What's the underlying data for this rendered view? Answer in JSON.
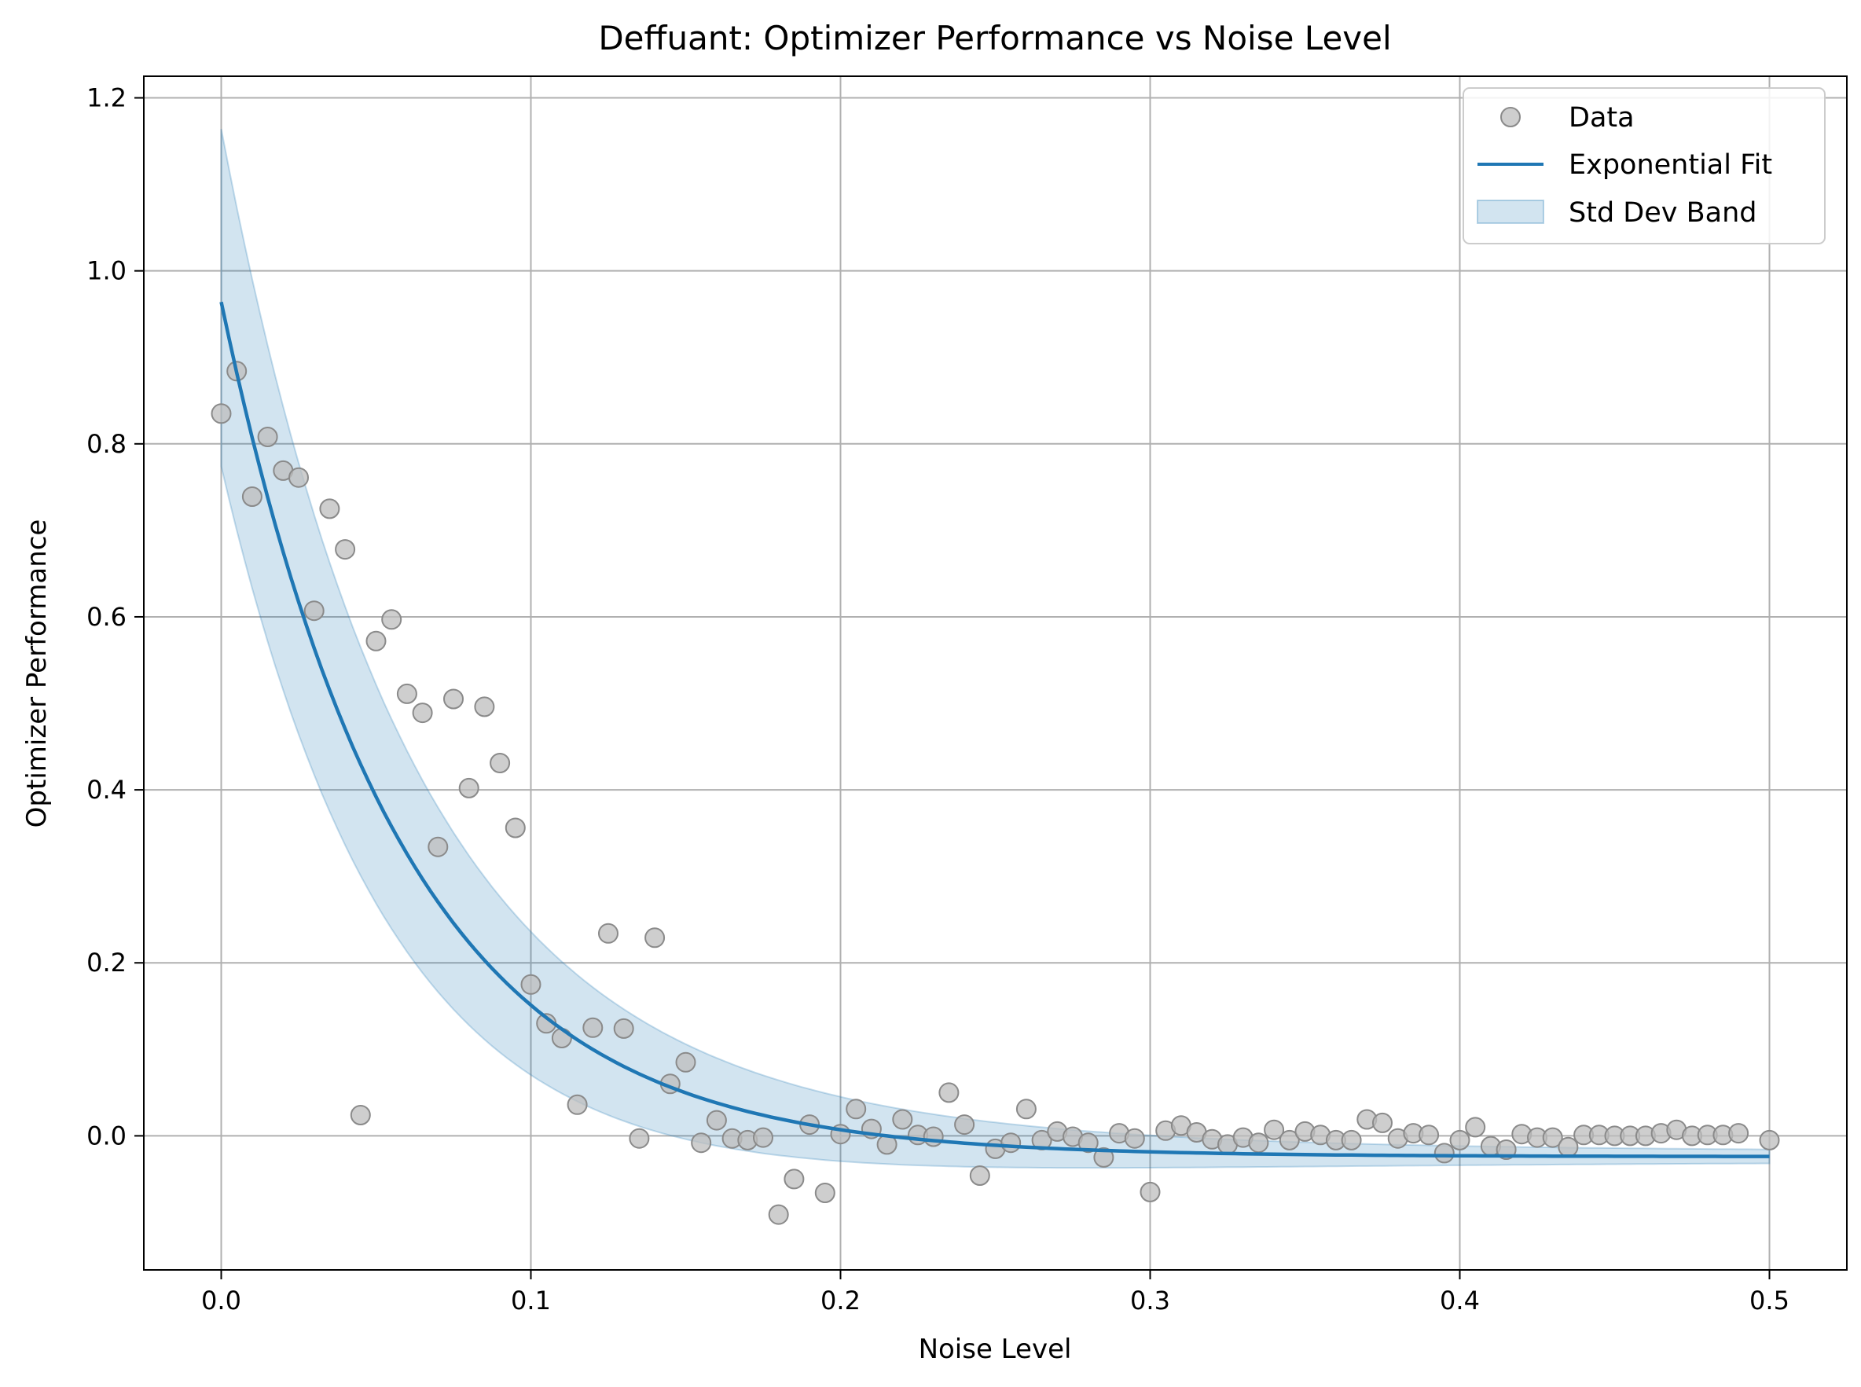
{
  "chart_data": {
    "type": "scatter",
    "title": "Deffuant: Optimizer Performance vs Noise Level",
    "xlabel": "Noise Level",
    "ylabel": "Optimizer Performance",
    "xlim": [
      -0.025,
      0.525
    ],
    "ylim": [
      -0.155,
      1.225
    ],
    "grid": true,
    "legend_placement": "top-right",
    "x_ticks": [
      0.0,
      0.1,
      0.2,
      0.3,
      0.4,
      0.5
    ],
    "x_tick_labels": [
      "0.0",
      "0.1",
      "0.2",
      "0.3",
      "0.4",
      "0.5"
    ],
    "y_ticks": [
      0.0,
      0.2,
      0.4,
      0.6,
      0.8,
      1.0,
      1.2
    ],
    "y_tick_labels": [
      "0.0",
      "0.2",
      "0.4",
      "0.6",
      "0.8",
      "1.0",
      "1.2"
    ],
    "legend": [
      "Data",
      "Exponential Fit",
      "Std Dev Band"
    ],
    "colors": {
      "scatter_fill": "#bdbdbd",
      "scatter_edge": "#8a8a8a",
      "fit_line": "#1f77b4",
      "band_fill": "#1f77b4",
      "grid": "#b0b0b0"
    },
    "series": [
      {
        "name": "Data",
        "kind": "scatter",
        "points": [
          [
            0.0,
            0.835
          ],
          [
            0.005,
            0.884
          ],
          [
            0.01,
            0.739
          ],
          [
            0.015,
            0.808
          ],
          [
            0.02,
            0.769
          ],
          [
            0.025,
            0.761
          ],
          [
            0.03,
            0.607
          ],
          [
            0.035,
            0.725
          ],
          [
            0.04,
            0.678
          ],
          [
            0.045,
            0.024
          ],
          [
            0.05,
            0.572
          ],
          [
            0.055,
            0.597
          ],
          [
            0.06,
            0.511
          ],
          [
            0.065,
            0.489
          ],
          [
            0.07,
            0.334
          ],
          [
            0.075,
            0.505
          ],
          [
            0.08,
            0.402
          ],
          [
            0.085,
            0.496
          ],
          [
            0.09,
            0.431
          ],
          [
            0.095,
            0.356
          ],
          [
            0.1,
            0.175
          ],
          [
            0.105,
            0.13
          ],
          [
            0.11,
            0.113
          ],
          [
            0.115,
            0.036
          ],
          [
            0.12,
            0.125
          ],
          [
            0.125,
            0.234
          ],
          [
            0.13,
            0.124
          ],
          [
            0.135,
            -0.003
          ],
          [
            0.14,
            0.229
          ],
          [
            0.145,
            0.06
          ],
          [
            0.15,
            0.085
          ],
          [
            0.155,
            -0.008
          ],
          [
            0.16,
            0.018
          ],
          [
            0.165,
            -0.003
          ],
          [
            0.17,
            -0.005
          ],
          [
            0.175,
            -0.002
          ],
          [
            0.18,
            -0.091
          ],
          [
            0.185,
            -0.05
          ],
          [
            0.19,
            0.013
          ],
          [
            0.195,
            -0.066
          ],
          [
            0.2,
            0.002
          ],
          [
            0.205,
            0.031
          ],
          [
            0.21,
            0.008
          ],
          [
            0.215,
            -0.01
          ],
          [
            0.22,
            0.019
          ],
          [
            0.225,
            0.001
          ],
          [
            0.23,
            -0.001
          ],
          [
            0.235,
            0.05
          ],
          [
            0.24,
            0.013
          ],
          [
            0.245,
            -0.046
          ],
          [
            0.25,
            -0.015
          ],
          [
            0.255,
            -0.008
          ],
          [
            0.26,
            0.031
          ],
          [
            0.265,
            -0.005
          ],
          [
            0.27,
            0.005
          ],
          [
            0.275,
            -0.001
          ],
          [
            0.28,
            -0.008
          ],
          [
            0.285,
            -0.025
          ],
          [
            0.29,
            0.003
          ],
          [
            0.295,
            -0.003
          ],
          [
            0.3,
            -0.065
          ],
          [
            0.305,
            0.006
          ],
          [
            0.31,
            0.012
          ],
          [
            0.315,
            0.004
          ],
          [
            0.32,
            -0.004
          ],
          [
            0.325,
            -0.01
          ],
          [
            0.33,
            -0.002
          ],
          [
            0.335,
            -0.008
          ],
          [
            0.34,
            0.007
          ],
          [
            0.345,
            -0.005
          ],
          [
            0.35,
            0.005
          ],
          [
            0.355,
            0.001
          ],
          [
            0.36,
            -0.005
          ],
          [
            0.365,
            -0.005
          ],
          [
            0.37,
            0.019
          ],
          [
            0.375,
            0.015
          ],
          [
            0.38,
            -0.003
          ],
          [
            0.385,
            0.003
          ],
          [
            0.39,
            0.001
          ],
          [
            0.395,
            -0.02
          ],
          [
            0.4,
            -0.005
          ],
          [
            0.405,
            0.01
          ],
          [
            0.41,
            -0.012
          ],
          [
            0.415,
            -0.016
          ],
          [
            0.42,
            0.002
          ],
          [
            0.425,
            -0.002
          ],
          [
            0.43,
            -0.002
          ],
          [
            0.435,
            -0.013
          ],
          [
            0.44,
            0.001
          ],
          [
            0.445,
            0.001
          ],
          [
            0.45,
            0.0
          ],
          [
            0.455,
            0.0
          ],
          [
            0.46,
            0.0
          ],
          [
            0.465,
            0.003
          ],
          [
            0.47,
            0.007
          ],
          [
            0.475,
            0.0
          ],
          [
            0.48,
            0.001
          ],
          [
            0.485,
            0.001
          ],
          [
            0.49,
            0.003
          ],
          [
            0.5,
            -0.005
          ]
        ]
      },
      {
        "name": "Exponential Fit",
        "kind": "line",
        "model": "a*exp(-b*x)+c",
        "params": {
          "a": 0.988,
          "b": 17.3,
          "c": -0.024
        },
        "x_range": [
          0.0,
          0.5
        ]
      },
      {
        "name": "Std Dev Band",
        "kind": "band",
        "upper_offset_at_0": 0.2,
        "lower_offset_at_0": -0.19,
        "half_width_decay": 9.0,
        "half_width_floor": 0.006
      }
    ]
  }
}
